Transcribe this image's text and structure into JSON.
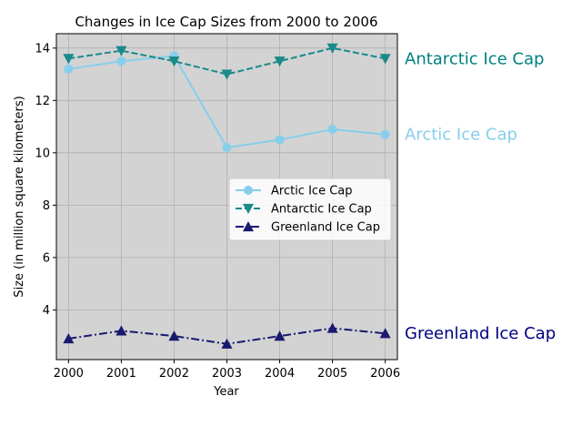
{
  "chart_data": {
    "type": "line",
    "title": "Changes in Ice Cap Sizes from 2000 to 2006",
    "xlabel": "Year",
    "ylabel": "Size (in million square kilometers)",
    "categories": [
      "2000",
      "2001",
      "2002",
      "2003",
      "2004",
      "2005",
      "2006"
    ],
    "x": [
      2000,
      2001,
      2002,
      2003,
      2004,
      2005,
      2006
    ],
    "xlim": [
      1999.77,
      2006.23
    ],
    "ylim": [
      2.1,
      14.55
    ],
    "yticks": [
      4,
      6,
      8,
      10,
      12,
      14
    ],
    "grid": true,
    "legend_position": "center-right",
    "background_color": "#d3d3d3",
    "series": [
      {
        "name": "Arctic Ice Cap",
        "values": [
          13.2,
          13.5,
          13.7,
          10.2,
          10.5,
          10.9,
          10.7
        ],
        "color": "#87ceeb",
        "linestyle": "solid",
        "marker": "circle",
        "end_label": "Arctic Ice Cap",
        "end_label_color": "#87ceeb"
      },
      {
        "name": "Antarctic Ice Cap",
        "values": [
          13.6,
          13.9,
          13.5,
          13.0,
          13.5,
          14.0,
          13.6
        ],
        "color": "#1a8a8a",
        "linestyle": "dashed",
        "marker": "triangle-down",
        "end_label": "Antarctic Ice Cap",
        "end_label_color": "#008080"
      },
      {
        "name": "Greenland Ice Cap",
        "values": [
          2.9,
          3.2,
          3.0,
          2.7,
          3.0,
          3.3,
          3.1
        ],
        "color": "#191970",
        "linestyle": "dashdot",
        "marker": "triangle-up",
        "end_label": "Greenland Ice Cap",
        "end_label_color": "#000080"
      }
    ]
  }
}
